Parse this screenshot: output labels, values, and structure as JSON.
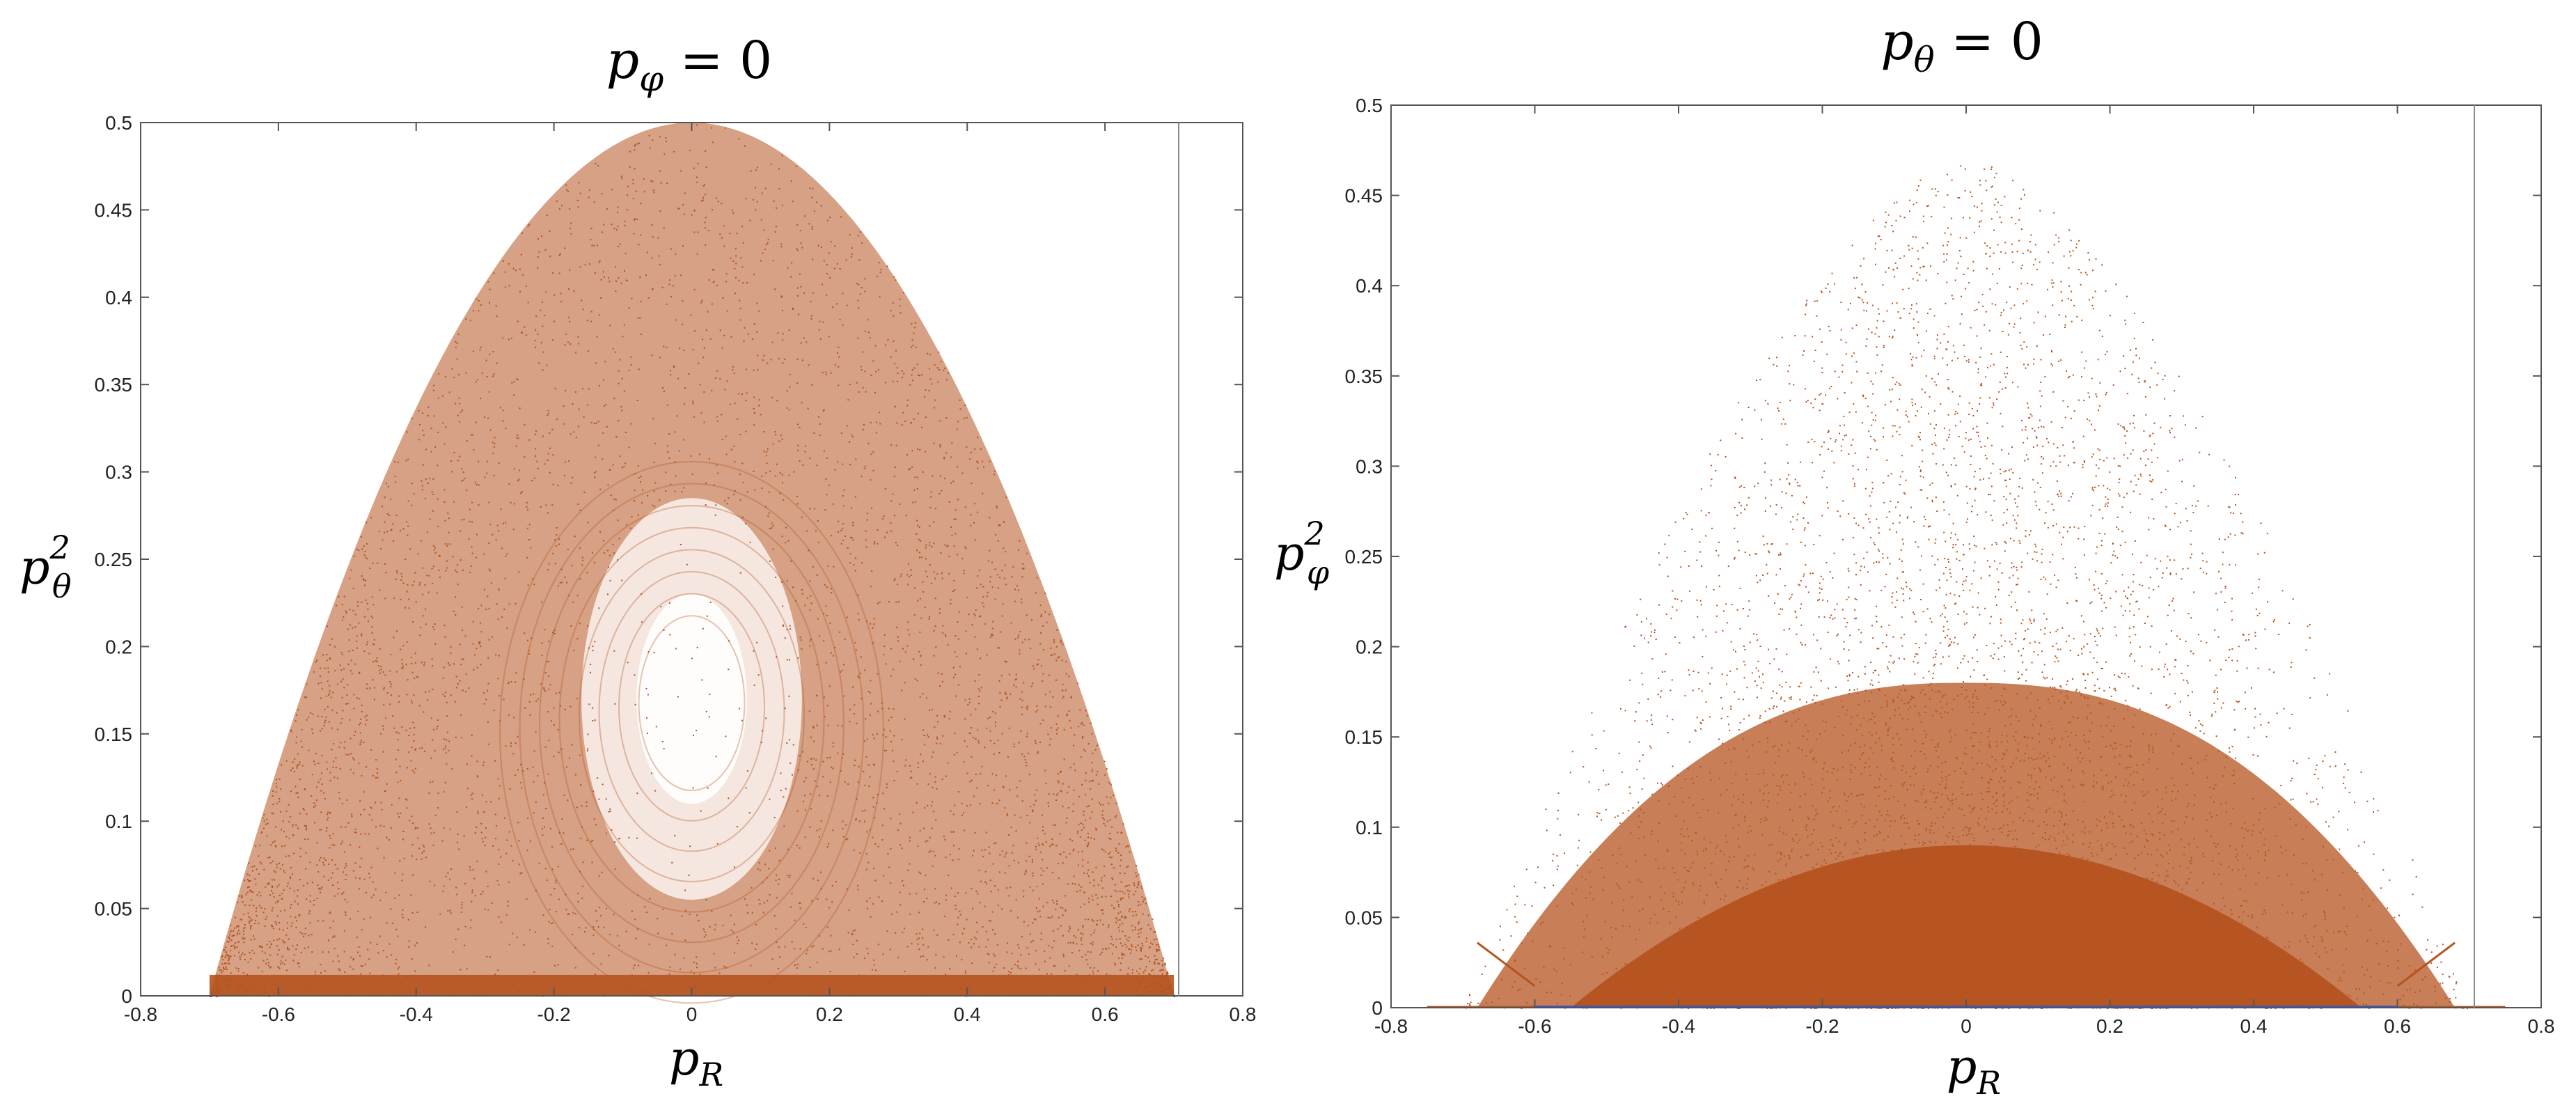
{
  "chart_data": [
    {
      "type": "scatter",
      "title": {
        "base": "p",
        "sub": "φ",
        "rest": " = 0"
      },
      "xlabel": {
        "base": "p",
        "sub": "R"
      },
      "ylabel": {
        "base": "p",
        "sub": "θ",
        "sup": "2"
      },
      "xlim": [
        -0.8,
        0.8
      ],
      "ylim": [
        0,
        0.5
      ],
      "xticks": [
        "-0.8",
        "-0.6",
        "-0.4",
        "-0.2",
        "0",
        "0.2",
        "0.4",
        "0.6",
        "0.8"
      ],
      "yticks": [
        "0",
        "0.05",
        "0.1",
        "0.15",
        "0.2",
        "0.25",
        "0.3",
        "0.35",
        "0.4",
        "0.45",
        "0.5"
      ],
      "grid": false,
      "series": [
        {
          "color": "#b5531f",
          "envelope": "parabola",
          "envelope_points": [
            [
              -0.7,
              0.0
            ],
            [
              -0.6,
              0.133
            ],
            [
              -0.4,
              0.337
            ],
            [
              -0.2,
              0.459
            ],
            [
              0.0,
              0.5
            ],
            [
              0.2,
              0.459
            ],
            [
              0.4,
              0.337
            ],
            [
              0.6,
              0.133
            ],
            [
              0.7,
              0.0
            ]
          ],
          "island_center": [
            0.0,
            0.17
          ],
          "point_count": 5200
        }
      ],
      "reference_line_x": 0.707
    },
    {
      "type": "scatter",
      "title": {
        "base": "p",
        "sub": "θ",
        "rest": " = 0"
      },
      "xlabel": {
        "base": "p",
        "sub": "R"
      },
      "ylabel": {
        "base": "p",
        "sub": "φ",
        "sup": "2"
      },
      "xlim": [
        -0.8,
        0.8
      ],
      "ylim": [
        0,
        0.5
      ],
      "xticks": [
        "-0.8",
        "-0.6",
        "-0.4",
        "-0.2",
        "0",
        "0.2",
        "0.4",
        "0.6",
        "0.8"
      ],
      "yticks": [
        "0",
        "0.05",
        "0.1",
        "0.15",
        "0.2",
        "0.25",
        "0.3",
        "0.35",
        "0.4",
        "0.45",
        "0.5"
      ],
      "grid": false,
      "series": [
        {
          "color": "#b5531f",
          "envelope": "diffuse",
          "envelope_points": [
            [
              -0.68,
              0.0
            ],
            [
              -0.6,
              0.05
            ],
            [
              -0.4,
              0.18
            ],
            [
              -0.2,
              0.38
            ],
            [
              0.0,
              0.47
            ],
            [
              0.2,
              0.38
            ],
            [
              0.4,
              0.18
            ],
            [
              0.6,
              0.05
            ],
            [
              0.68,
              0.0
            ]
          ],
          "point_count": 6500
        },
        {
          "color": "#3b55c8",
          "envelope": "baseline",
          "envelope_points": [
            [
              -0.6,
              0.0
            ],
            [
              0.6,
              0.0
            ]
          ]
        }
      ],
      "reference_line_x": 0.707
    }
  ]
}
